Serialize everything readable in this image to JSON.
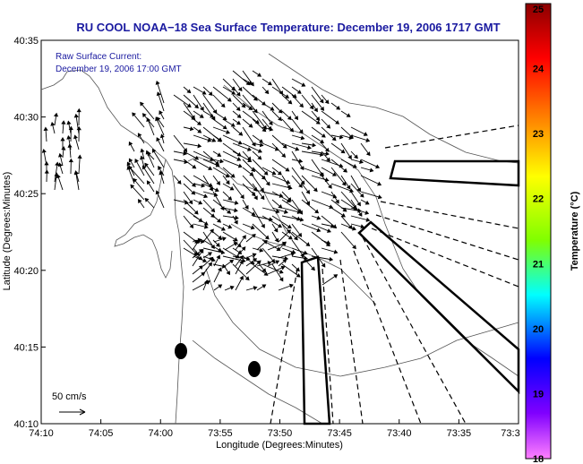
{
  "chart_data": {
    "type": "vector-field-map",
    "title": "RU COOL  NOAA−18  Sea Surface Temperature:  December 19, 2006 1717 GMT",
    "xlabel": "Longitude (Degrees:Minutes)",
    "ylabel": "Latitude (Degrees:Minutes)",
    "x_ticks": [
      "74:10",
      "74:05",
      "74:00",
      "73:55",
      "73:50",
      "73:45",
      "73:40",
      "73:35",
      "73:3"
    ],
    "y_ticks": [
      "40:35",
      "40:30",
      "40:25",
      "40:20",
      "40:15",
      "40:10"
    ],
    "xlim_minutes_west": [
      10,
      30
    ],
    "ylim_minutes_north": [
      10,
      35
    ],
    "annotation_lines": [
      "Raw Surface Current:",
      "December 19, 2006 17:00 GMT"
    ],
    "scale_label": "50 cm/s",
    "colorbar": {
      "label": "Temperature (°C)",
      "ticks": [
        "25",
        "24",
        "23",
        "22",
        "21",
        "20",
        "19",
        "18"
      ],
      "range": [
        18,
        25
      ],
      "colors": [
        "#8b0000",
        "#ff0000",
        "#ff8000",
        "#ffff00",
        "#80ff00",
        "#00ffff",
        "#0000ff",
        "#8000ff",
        "#ff80ff"
      ]
    },
    "buoys": [
      {
        "lon_min": 59.0,
        "lat_min": 14.7
      },
      {
        "lon_min": 52.4,
        "lat_min": 13.5
      }
    ]
  }
}
